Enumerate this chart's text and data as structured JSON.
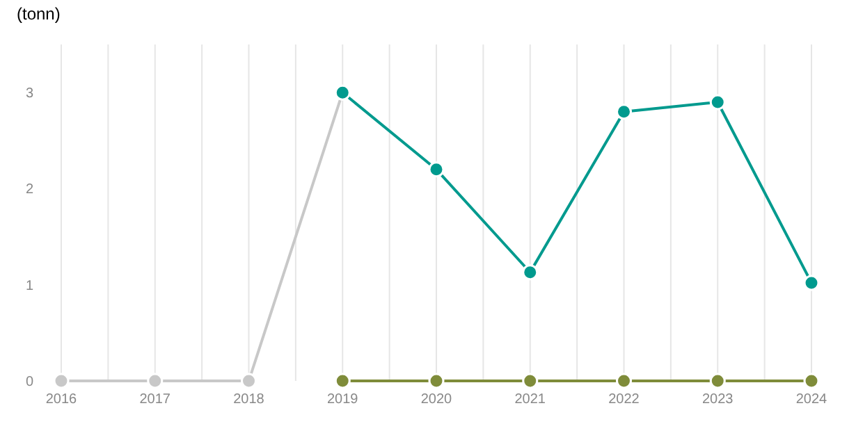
{
  "chart_data": {
    "type": "line",
    "ylabel": "(tonn)",
    "xlim": [
      2016,
      2024
    ],
    "ylim": [
      0,
      3.5
    ],
    "xticks": [
      2016,
      {
        "value": 2016.5,
        "label": null
      },
      2017,
      {
        "value": 2017.5,
        "label": null
      },
      2018,
      {
        "value": 2018.5,
        "label": null
      },
      2019,
      {
        "value": 2019.5,
        "label": null
      },
      2020,
      {
        "value": 2020.5,
        "label": null
      },
      2021,
      {
        "value": 2021.5,
        "label": null
      },
      2022,
      {
        "value": 2022.5,
        "label": null
      },
      2023,
      {
        "value": 2023.5,
        "label": null
      },
      2024
    ],
    "yticks": [
      0,
      1,
      2,
      3
    ],
    "grid": "x",
    "marker": "circle",
    "line_style": "solid",
    "series": [
      {
        "color": "#c8c8c8",
        "x": [
          2016,
          2017,
          2018,
          2019
        ],
        "values": [
          0,
          0,
          0,
          3
        ]
      },
      {
        "color": "#7f8c3a",
        "x": [
          2019,
          2020,
          2021,
          2022,
          2023,
          2024
        ],
        "values": [
          0,
          0,
          0,
          0,
          0,
          0
        ]
      },
      {
        "color": "#009a8e",
        "x": [
          2019,
          2020,
          2021,
          2022,
          2023,
          2024
        ],
        "values": [
          3,
          2.2,
          1.13,
          2.8,
          2.9,
          1.02
        ]
      }
    ]
  }
}
